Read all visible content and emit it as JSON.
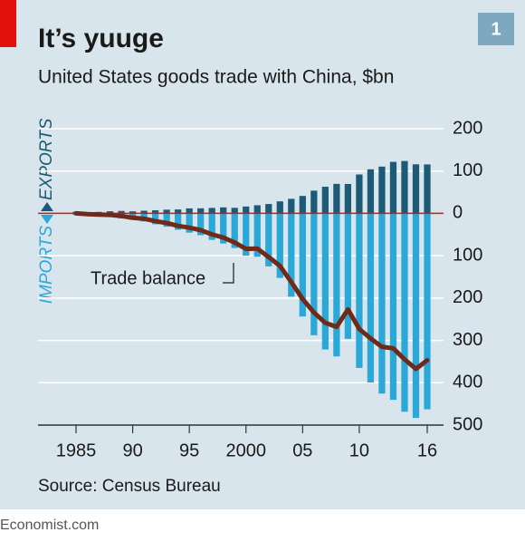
{
  "chart_data": {
    "type": "bar",
    "title": "It’s yuuge",
    "subtitle": "United States goods trade with China, $bn",
    "badge": "1",
    "source": "Source: Census Bureau",
    "footer": "Economist.com",
    "annotations": {
      "exports": "EXPORTS",
      "imports": "IMPORTS",
      "balance": "Trade balance"
    },
    "x": [
      1985,
      1986,
      1987,
      1988,
      1989,
      1990,
      1991,
      1992,
      1993,
      1994,
      1995,
      1996,
      1997,
      1998,
      1999,
      2000,
      2001,
      2002,
      2003,
      2004,
      2005,
      2006,
      2007,
      2008,
      2009,
      2010,
      2011,
      2012,
      2013,
      2014,
      2015,
      2016
    ],
    "series": [
      {
        "name": "Exports",
        "color": "#1d5a76",
        "values": [
          3.9,
          3.1,
          3.5,
          5.0,
          5.8,
          4.8,
          6.3,
          7.4,
          8.8,
          9.3,
          11.8,
          12.0,
          12.9,
          14.2,
          13.1,
          16.2,
          19.2,
          22.1,
          28.4,
          34.4,
          41.2,
          53.7,
          62.9,
          69.7,
          69.5,
          91.9,
          104.1,
          110.5,
          121.7,
          123.7,
          115.9,
          115.6
        ]
      },
      {
        "name": "Imports",
        "color": "#2aa8d8",
        "values": [
          -3.9,
          -4.8,
          -6.3,
          -8.5,
          -12.0,
          -15.2,
          -19.0,
          -25.7,
          -31.5,
          -38.8,
          -45.5,
          -51.5,
          -62.6,
          -71.2,
          -81.8,
          -100.0,
          -102.3,
          -125.2,
          -152.4,
          -196.7,
          -243.5,
          -287.8,
          -321.4,
          -337.8,
          -296.4,
          -365.0,
          -399.4,
          -425.6,
          -440.4,
          -468.5,
          -483.2,
          -462.6
        ]
      },
      {
        "name": "Trade balance",
        "type": "line",
        "color": "#6e2a1a",
        "values": [
          0,
          -1.7,
          -2.8,
          -3.5,
          -6.2,
          -10.4,
          -12.7,
          -18.3,
          -22.8,
          -29.5,
          -33.8,
          -39.5,
          -49.7,
          -57.0,
          -68.7,
          -83.8,
          -83.1,
          -103.1,
          -124.1,
          -162.3,
          -202.3,
          -234.1,
          -258.5,
          -268.0,
          -226.9,
          -273.1,
          -295.3,
          -315.1,
          -318.7,
          -344.8,
          -367.3,
          -347.0
        ]
      }
    ],
    "xlim": [
      1985,
      2016
    ],
    "xticks": [
      1985,
      {
        "value": 1990,
        "label": "90"
      },
      {
        "value": 1995,
        "label": "95"
      },
      2000,
      {
        "value": 2005,
        "label": "05"
      },
      {
        "value": 2010,
        "label": "10"
      },
      {
        "value": 2016,
        "label": "16"
      }
    ],
    "ylim": [
      -500,
      200
    ],
    "yticks": [
      200,
      100,
      0,
      {
        "value": -100,
        "label": "100"
      },
      {
        "value": -200,
        "label": "200"
      },
      {
        "value": -300,
        "label": "300"
      },
      {
        "value": -400,
        "label": "400"
      },
      {
        "value": -500,
        "label": "500"
      }
    ],
    "grid": true
  }
}
